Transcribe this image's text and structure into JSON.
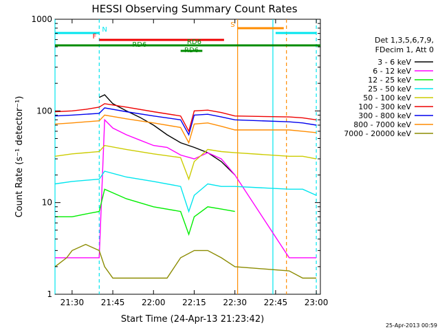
{
  "chart_data": {
    "type": "line",
    "title": "HESSI Observing Summary Count Rates",
    "xlabel": "Start Time (24-Apr-13 21:23:42)",
    "ylabel": "Count Rate (s⁻¹ detector⁻¹)",
    "y_scale": "log",
    "xlim": [
      "21:23:42",
      "23:01:30"
    ],
    "ylim": [
      1,
      1000
    ],
    "x_ticks": [
      "21:30",
      "21:45",
      "22:00",
      "22:15",
      "22:30",
      "22:45",
      "23:00"
    ],
    "y_ticks": [
      "1",
      "10",
      "100",
      "1000"
    ],
    "footer_date": "25-Apr-2013 00:59",
    "legend": {
      "header1": "Det 1,3,5,6,7,9,",
      "header2": "FDecim 1, Att 0",
      "placement": "right"
    },
    "flags": [
      {
        "label": "N",
        "color": "#00e5ee",
        "segments": [
          [
            "21:23:42",
            "21:40:00"
          ],
          [
            "22:45:00",
            "23:00:00"
          ]
        ]
      },
      {
        "label": "F",
        "color": "#ee0000",
        "segments": [
          [
            "21:40:00",
            "22:26:00"
          ]
        ]
      },
      {
        "label": "S",
        "color": "#ff8c00",
        "segments": [
          [
            "22:31:00",
            "22:48:00"
          ]
        ]
      },
      {
        "label": "RD6",
        "color": "#008b00",
        "segments": [
          [
            "21:23:42",
            "23:01:30"
          ]
        ]
      },
      {
        "label": "RD6",
        "color": "#008b00",
        "segments": [
          [
            "22:10:00",
            "22:18:00"
          ]
        ]
      },
      {
        "label": "RD6",
        "color": "#008b00",
        "segments": [
          [
            "21:58:00",
            "22:10:00"
          ]
        ]
      }
    ],
    "vlines": [
      {
        "t": "21:23:42",
        "color": "#00e5ee",
        "style": "solid"
      },
      {
        "t": "21:40:00",
        "color": "#00e5ee",
        "style": "dashed"
      },
      {
        "t": "22:31:00",
        "color": "#ff8c00",
        "style": "solid"
      },
      {
        "t": "22:44:00",
        "color": "#00e5ee",
        "style": "solid"
      },
      {
        "t": "22:49:00",
        "color": "#ff8c00",
        "style": "dashed"
      },
      {
        "t": "23:00:00",
        "color": "#00e5ee",
        "style": "dashed"
      }
    ],
    "series": [
      {
        "name": "3 - 6 keV",
        "color": "#000000",
        "x": [
          "21:40",
          "21:42",
          "21:45",
          "21:50",
          "21:55",
          "22:00",
          "22:05",
          "22:10",
          "22:15",
          "22:20",
          "22:25",
          "22:30"
        ],
        "y": [
          140,
          150,
          120,
          100,
          85,
          70,
          55,
          45,
          40,
          35,
          28,
          20
        ]
      },
      {
        "name": "6 - 12 keV",
        "color": "#ff00ff",
        "x": [
          "21:23:42",
          "21:30",
          "21:35",
          "21:40",
          "21:42",
          "21:45",
          "21:50",
          "21:55",
          "22:00",
          "22:05",
          "22:10",
          "22:15",
          "22:20",
          "22:25",
          "22:30",
          "22:50",
          "22:55",
          "23:00"
        ],
        "y": [
          2.5,
          2.5,
          2.5,
          2.5,
          80,
          65,
          55,
          48,
          42,
          40,
          33,
          30,
          35,
          30,
          20,
          2.5,
          2.5,
          2.5
        ]
      },
      {
        "name": "12 - 25 keV",
        "color": "#00ee00",
        "x": [
          "21:23:42",
          "21:30",
          "21:35",
          "21:40",
          "21:42",
          "21:50",
          "22:00",
          "22:10",
          "22:13",
          "22:15",
          "22:20",
          "22:25",
          "22:30"
        ],
        "y": [
          7,
          7,
          7.5,
          8,
          14,
          11,
          9,
          8,
          4.5,
          7,
          9,
          8.5,
          8
        ]
      },
      {
        "name": "25 - 50 keV",
        "color": "#00e5ee",
        "x": [
          "21:23:42",
          "21:30",
          "21:40",
          "21:42",
          "21:50",
          "22:00",
          "22:10",
          "22:13",
          "22:15",
          "22:20",
          "22:25",
          "22:30",
          "22:50",
          "22:55",
          "23:00"
        ],
        "y": [
          16,
          17,
          18,
          22,
          19,
          17,
          15,
          8,
          12,
          16,
          15,
          15,
          14,
          14,
          12
        ]
      },
      {
        "name": "50 - 100 keV",
        "color": "#cccc00",
        "x": [
          "21:23:42",
          "21:30",
          "21:40",
          "21:42",
          "21:50",
          "22:00",
          "22:10",
          "22:13",
          "22:15",
          "22:20",
          "22:25",
          "22:30",
          "22:50",
          "22:55",
          "23:00"
        ],
        "y": [
          32,
          34,
          36,
          42,
          38,
          34,
          31,
          18,
          28,
          38,
          36,
          35,
          32,
          32,
          30
        ]
      },
      {
        "name": "100 - 300 keV",
        "color": "#ee0000",
        "x": [
          "21:23:42",
          "21:30",
          "21:35",
          "21:40",
          "21:42",
          "21:50",
          "22:00",
          "22:10",
          "22:13",
          "22:15",
          "22:20",
          "22:25",
          "22:30",
          "22:50",
          "22:55",
          "23:00"
        ],
        "y": [
          98,
          100,
          104,
          110,
          120,
          110,
          98,
          88,
          60,
          100,
          102,
          96,
          88,
          86,
          84,
          80
        ]
      },
      {
        "name": "300 - 800 keV",
        "color": "#0000ee",
        "x": [
          "21:23:42",
          "21:30",
          "21:40",
          "21:42",
          "21:50",
          "22:00",
          "22:10",
          "22:13",
          "22:15",
          "22:20",
          "22:25",
          "22:30",
          "22:50",
          "22:55",
          "23:00"
        ],
        "y": [
          88,
          90,
          94,
          108,
          98,
          88,
          80,
          55,
          90,
          92,
          86,
          80,
          76,
          74,
          70
        ]
      },
      {
        "name": "800 - 7000 keV",
        "color": "#ff8c00",
        "x": [
          "21:23:42",
          "21:30",
          "21:40",
          "21:42",
          "21:50",
          "22:00",
          "22:10",
          "22:13",
          "22:15",
          "22:20",
          "22:25",
          "22:30",
          "22:50",
          "22:55",
          "23:00"
        ],
        "y": [
          72,
          74,
          78,
          90,
          82,
          74,
          66,
          45,
          72,
          74,
          68,
          62,
          62,
          60,
          58
        ]
      },
      {
        "name": "7000 - 20000 keV",
        "color": "#8b8b00",
        "x": [
          "21:23:42",
          "21:28",
          "21:30",
          "21:35",
          "21:40",
          "21:42",
          "21:45",
          "21:50",
          "22:00",
          "22:05",
          "22:10",
          "22:15",
          "22:20",
          "22:25",
          "22:30",
          "22:50",
          "22:55",
          "23:00"
        ],
        "y": [
          2,
          2.5,
          3,
          3.5,
          3,
          2,
          1.5,
          1.5,
          1.5,
          1.5,
          2.5,
          3,
          3,
          2.5,
          2,
          1.8,
          1.5,
          1.5
        ]
      }
    ]
  }
}
